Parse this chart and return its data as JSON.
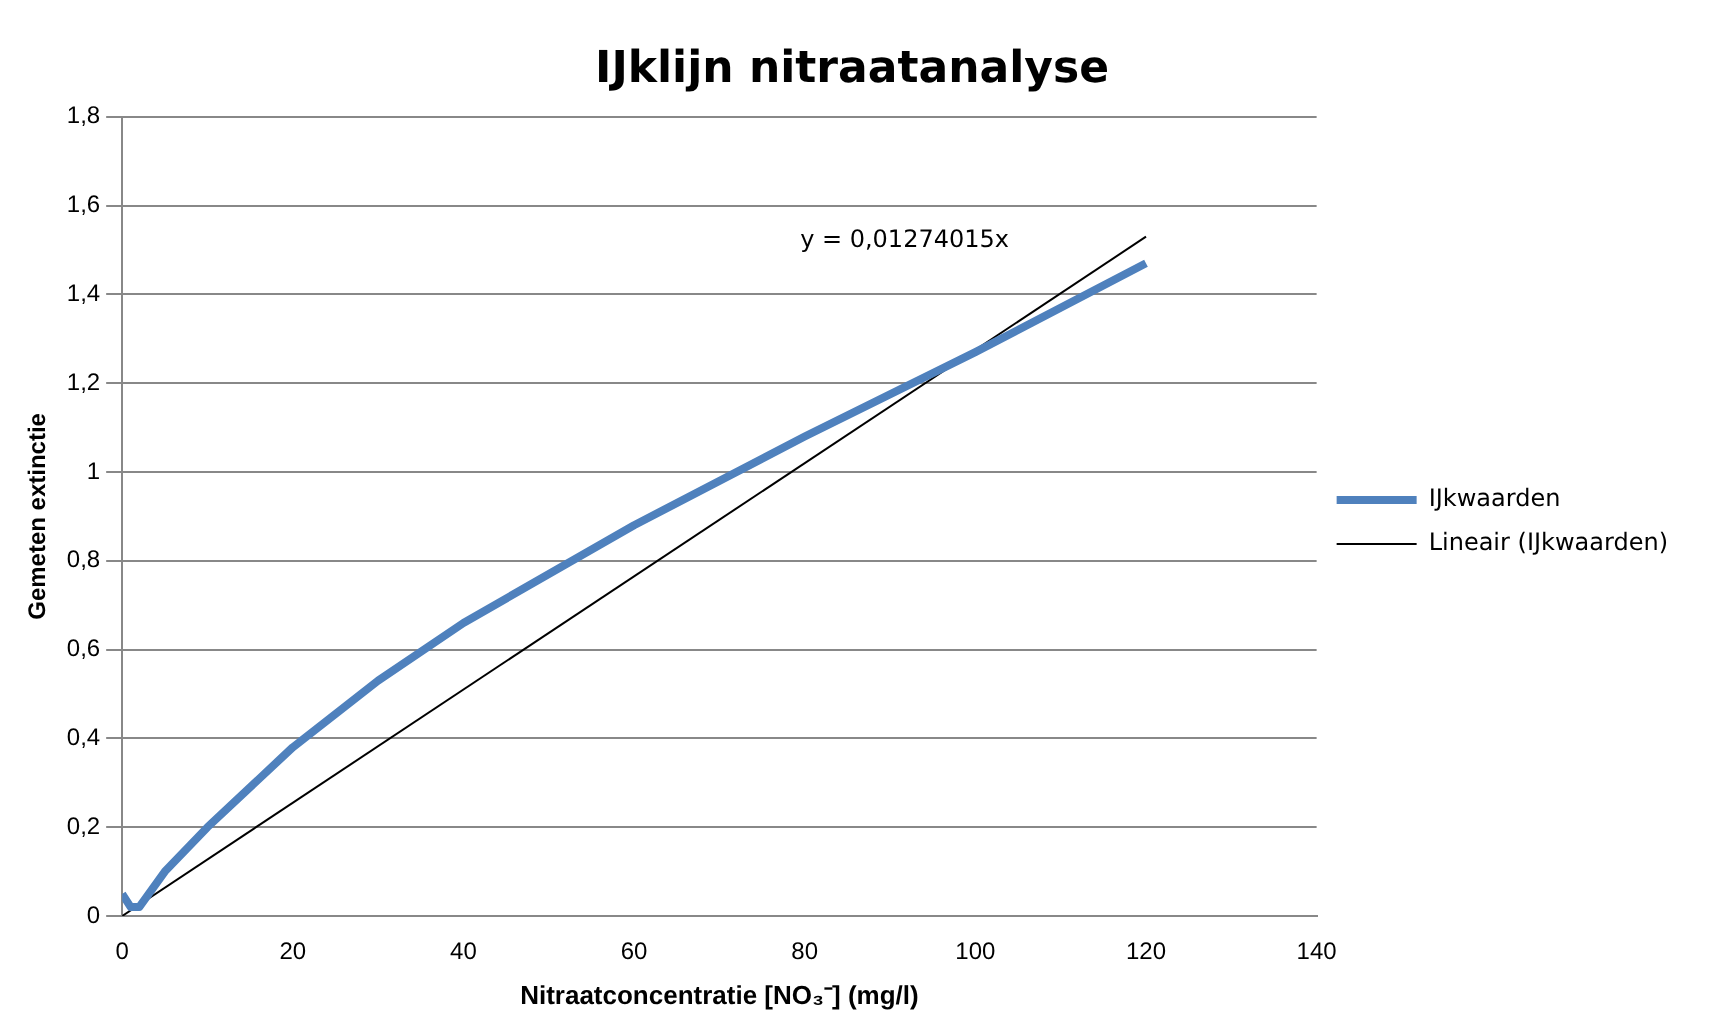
{
  "chart_data": {
    "type": "line",
    "title": "IJklijn nitraatanalyse",
    "xlabel": "Nitraatconcentratie [NO₃⁻] (mg/l)",
    "ylabel": "Gemeten extinctie",
    "series": [
      {
        "name": "IJkwaarden",
        "color": "#4f81bd",
        "x": [
          0,
          1,
          2,
          5,
          10,
          20,
          30,
          40,
          60,
          80,
          100,
          120
        ],
        "values": [
          0.05,
          0.02,
          0.02,
          0.1,
          0.2,
          0.38,
          0.53,
          0.66,
          0.88,
          1.08,
          1.27,
          1.47
        ]
      },
      {
        "name": "Lineair (IJkwaarden)",
        "type": "line",
        "color": "#000000",
        "x": [
          0,
          120
        ],
        "values": [
          0,
          1.53
        ]
      }
    ],
    "xlim": [
      0,
      140
    ],
    "xticks": [
      0,
      20,
      40,
      60,
      80,
      100,
      120,
      140
    ],
    "ylim": [
      0,
      1.8
    ],
    "yticks": [
      0,
      {
        "value": 0.2,
        "label": "0,2"
      },
      {
        "value": 0.4,
        "label": "0,4"
      },
      {
        "value": 0.6,
        "label": "0,6"
      },
      {
        "value": 0.8,
        "label": "0,8"
      },
      1,
      {
        "value": 1.2,
        "label": "1,2"
      },
      {
        "value": 1.4,
        "label": "1,4"
      },
      {
        "value": 1.6,
        "label": "1,6"
      },
      {
        "value": 1.8,
        "label": "1,8"
      }
    ],
    "annotations": [
      "y = 0,01274015x"
    ],
    "grid": "y",
    "legend": "right",
    "marker": "none"
  }
}
